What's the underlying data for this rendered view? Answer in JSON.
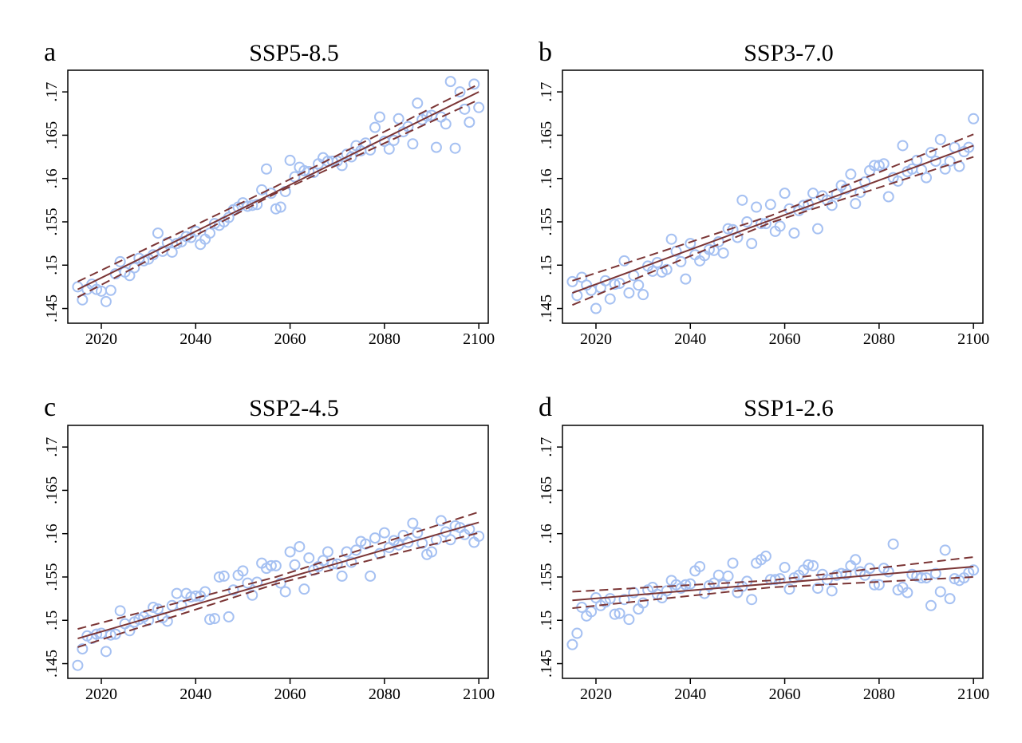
{
  "chart_data": [
    {
      "type": "scatter",
      "panel_label": "a",
      "title": "SSP5-8.5",
      "color": "#a6c1f2",
      "fit_color": "#7b3535",
      "xlim": [
        2012.9,
        2102
      ],
      "ylim": [
        0.1433,
        0.1725
      ],
      "xticks": [
        2020,
        2040,
        2060,
        2080,
        2100
      ],
      "yticks": [
        {
          "value": 0.145,
          "label": ".145"
        },
        {
          "value": 0.15,
          "label": ".15"
        },
        {
          "value": 0.155,
          "label": ".155"
        },
        {
          "value": 0.16,
          "label": ".16"
        },
        {
          "value": 0.165,
          "label": ".165"
        },
        {
          "value": 0.17,
          "label": ".17"
        }
      ],
      "x": [
        2015,
        2016,
        2017,
        2018,
        2019,
        2020,
        2021,
        2022,
        2023,
        2024,
        2025,
        2026,
        2027,
        2028,
        2029,
        2030,
        2031,
        2032,
        2033,
        2034,
        2035,
        2036,
        2037,
        2038,
        2039,
        2040,
        2041,
        2042,
        2043,
        2044,
        2045,
        2046,
        2047,
        2048,
        2049,
        2050,
        2051,
        2052,
        2053,
        2054,
        2055,
        2056,
        2057,
        2058,
        2059,
        2060,
        2061,
        2062,
        2063,
        2064,
        2065,
        2066,
        2067,
        2068,
        2069,
        2070,
        2071,
        2072,
        2073,
        2074,
        2075,
        2076,
        2077,
        2078,
        2079,
        2080,
        2081,
        2082,
        2083,
        2084,
        2085,
        2086,
        2087,
        2088,
        2089,
        2090,
        2091,
        2092,
        2093,
        2094,
        2095,
        2096,
        2097,
        2098,
        2099,
        2100
      ],
      "values": [
        0.1475,
        0.146,
        0.1472,
        0.1478,
        0.1472,
        0.147,
        0.1458,
        0.1471,
        0.149,
        0.1504,
        0.1492,
        0.1488,
        0.1497,
        0.1508,
        0.1505,
        0.1507,
        0.1512,
        0.1537,
        0.1516,
        0.1526,
        0.1515,
        0.1525,
        0.1527,
        0.1533,
        0.1532,
        0.1539,
        0.1524,
        0.153,
        0.1537,
        0.1548,
        0.1546,
        0.155,
        0.1555,
        0.1564,
        0.1567,
        0.1572,
        0.1568,
        0.1569,
        0.157,
        0.1587,
        0.1611,
        0.1583,
        0.1565,
        0.1567,
        0.1585,
        0.1621,
        0.1602,
        0.1613,
        0.1609,
        0.1608,
        0.1607,
        0.1617,
        0.1624,
        0.162,
        0.162,
        0.162,
        0.1615,
        0.1628,
        0.1625,
        0.1638,
        0.1632,
        0.1641,
        0.1633,
        0.1659,
        0.1671,
        0.1643,
        0.1634,
        0.1644,
        0.1669,
        0.1654,
        0.166,
        0.164,
        0.1687,
        0.1668,
        0.1672,
        0.1673,
        0.1636,
        0.1671,
        0.1663,
        0.1712,
        0.1635,
        0.17,
        0.168,
        0.1665,
        0.1709,
        0.1682
      ],
      "fit": {
        "x": [
          2015,
          2100
        ],
        "values": [
          0.1472,
          0.17
        ]
      },
      "ci_lower": {
        "x": [
          2015,
          2057,
          2100
        ],
        "values": [
          0.1463,
          0.1583,
          0.1691
        ]
      },
      "ci_upper": {
        "x": [
          2015,
          2057,
          2100
        ],
        "values": [
          0.1481,
          0.1591,
          0.1709
        ]
      }
    },
    {
      "type": "scatter",
      "panel_label": "b",
      "title": "SSP3-7.0",
      "color": "#a6c1f2",
      "fit_color": "#7b3535",
      "xlim": [
        2012.9,
        2102
      ],
      "ylim": [
        0.1433,
        0.1725
      ],
      "xticks": [
        2020,
        2040,
        2060,
        2080,
        2100
      ],
      "yticks": [
        {
          "value": 0.145,
          "label": ".145"
        },
        {
          "value": 0.15,
          "label": ".15"
        },
        {
          "value": 0.155,
          "label": ".155"
        },
        {
          "value": 0.16,
          "label": ".16"
        },
        {
          "value": 0.165,
          "label": ".165"
        },
        {
          "value": 0.17,
          "label": ".17"
        }
      ],
      "x": [
        2015,
        2016,
        2017,
        2018,
        2019,
        2020,
        2021,
        2022,
        2023,
        2024,
        2025,
        2026,
        2027,
        2028,
        2029,
        2030,
        2031,
        2032,
        2033,
        2034,
        2035,
        2036,
        2037,
        2038,
        2039,
        2040,
        2041,
        2042,
        2043,
        2044,
        2045,
        2046,
        2047,
        2048,
        2049,
        2050,
        2051,
        2052,
        2053,
        2054,
        2055,
        2056,
        2057,
        2058,
        2059,
        2060,
        2061,
        2062,
        2063,
        2064,
        2065,
        2066,
        2067,
        2068,
        2069,
        2070,
        2071,
        2072,
        2073,
        2074,
        2075,
        2076,
        2077,
        2078,
        2079,
        2080,
        2081,
        2082,
        2083,
        2084,
        2085,
        2086,
        2087,
        2088,
        2089,
        2090,
        2091,
        2092,
        2093,
        2094,
        2095,
        2096,
        2097,
        2098,
        2099,
        2100
      ],
      "values": [
        0.1481,
        0.1465,
        0.1486,
        0.1477,
        0.1471,
        0.145,
        0.1474,
        0.1482,
        0.1461,
        0.1478,
        0.1479,
        0.1505,
        0.1468,
        0.1488,
        0.1477,
        0.1466,
        0.1499,
        0.1493,
        0.1503,
        0.1492,
        0.1495,
        0.153,
        0.1516,
        0.1504,
        0.1484,
        0.1525,
        0.1512,
        0.1505,
        0.1511,
        0.1518,
        0.1517,
        0.1527,
        0.1514,
        0.1542,
        0.1541,
        0.1532,
        0.1575,
        0.155,
        0.1525,
        0.1567,
        0.1548,
        0.1548,
        0.157,
        0.1539,
        0.1545,
        0.1583,
        0.1565,
        0.1537,
        0.1563,
        0.1569,
        0.157,
        0.1583,
        0.1542,
        0.158,
        0.1575,
        0.1569,
        0.1582,
        0.1592,
        0.1588,
        0.1605,
        0.1571,
        0.1584,
        0.1596,
        0.1609,
        0.1615,
        0.1615,
        0.1617,
        0.1579,
        0.1601,
        0.1597,
        0.1638,
        0.1608,
        0.1611,
        0.1621,
        0.161,
        0.1601,
        0.163,
        0.162,
        0.1645,
        0.1611,
        0.162,
        0.1636,
        0.1614,
        0.1631,
        0.1636,
        0.1669
      ],
      "fit": {
        "x": [
          2015,
          2100
        ],
        "values": [
          0.1468,
          0.1638
        ]
      },
      "ci_lower": {
        "x": [
          2015,
          2057,
          2100
        ],
        "values": [
          0.1454,
          0.1549,
          0.1625
        ]
      },
      "ci_upper": {
        "x": [
          2015,
          2057,
          2100
        ],
        "values": [
          0.1482,
          0.1557,
          0.1651
        ]
      }
    },
    {
      "type": "scatter",
      "panel_label": "c",
      "title": "SSP2-4.5",
      "color": "#a6c1f2",
      "fit_color": "#7b3535",
      "xlim": [
        2012.9,
        2102
      ],
      "ylim": [
        0.1433,
        0.1725
      ],
      "xticks": [
        2020,
        2040,
        2060,
        2080,
        2100
      ],
      "yticks": [
        {
          "value": 0.145,
          "label": ".145"
        },
        {
          "value": 0.15,
          "label": ".15"
        },
        {
          "value": 0.155,
          "label": ".155"
        },
        {
          "value": 0.16,
          "label": ".16"
        },
        {
          "value": 0.165,
          "label": ".165"
        },
        {
          "value": 0.17,
          "label": ".17"
        }
      ],
      "x": [
        2015,
        2016,
        2017,
        2018,
        2019,
        2020,
        2021,
        2022,
        2023,
        2024,
        2025,
        2026,
        2027,
        2028,
        2029,
        2030,
        2031,
        2032,
        2033,
        2034,
        2035,
        2036,
        2037,
        2038,
        2039,
        2040,
        2041,
        2042,
        2043,
        2044,
        2045,
        2046,
        2047,
        2048,
        2049,
        2050,
        2051,
        2052,
        2053,
        2054,
        2055,
        2056,
        2057,
        2058,
        2059,
        2060,
        2061,
        2062,
        2063,
        2064,
        2065,
        2066,
        2067,
        2068,
        2069,
        2070,
        2071,
        2072,
        2073,
        2074,
        2075,
        2076,
        2077,
        2078,
        2079,
        2080,
        2081,
        2082,
        2083,
        2084,
        2085,
        2086,
        2087,
        2088,
        2089,
        2090,
        2091,
        2092,
        2093,
        2094,
        2095,
        2096,
        2097,
        2098,
        2099,
        2100
      ],
      "values": [
        0.1448,
        0.1467,
        0.1482,
        0.1479,
        0.1484,
        0.1485,
        0.1464,
        0.1483,
        0.1484,
        0.1511,
        0.1496,
        0.1488,
        0.1498,
        0.1501,
        0.1504,
        0.15,
        0.1515,
        0.1513,
        0.1503,
        0.1499,
        0.1517,
        0.1531,
        0.1517,
        0.1531,
        0.1527,
        0.1528,
        0.1528,
        0.1533,
        0.1501,
        0.1502,
        0.155,
        0.1551,
        0.1504,
        0.1535,
        0.1552,
        0.1557,
        0.1543,
        0.1529,
        0.1544,
        0.1566,
        0.156,
        0.1563,
        0.1563,
        0.1543,
        0.1533,
        0.1579,
        0.1564,
        0.1585,
        0.1536,
        0.1572,
        0.1558,
        0.1562,
        0.1569,
        0.1579,
        0.1565,
        0.1565,
        0.1551,
        0.1579,
        0.1567,
        0.1581,
        0.1591,
        0.1588,
        0.1551,
        0.1595,
        0.1577,
        0.1601,
        0.1584,
        0.1592,
        0.1587,
        0.1598,
        0.159,
        0.1612,
        0.1601,
        0.1589,
        0.1576,
        0.1579,
        0.1593,
        0.1615,
        0.1602,
        0.1593,
        0.1609,
        0.1607,
        0.1599,
        0.1605,
        0.159,
        0.1597
      ],
      "fit": {
        "x": [
          2015,
          2100
        ],
        "values": [
          0.1479,
          0.1613
        ]
      },
      "ci_lower": {
        "x": [
          2015,
          2057,
          2100
        ],
        "values": [
          0.1469,
          0.1542,
          0.1601
        ]
      },
      "ci_upper": {
        "x": [
          2015,
          2057,
          2100
        ],
        "values": [
          0.149,
          0.155,
          0.1625
        ]
      }
    },
    {
      "type": "scatter",
      "panel_label": "d",
      "title": "SSP1-2.6",
      "color": "#a6c1f2",
      "fit_color": "#7b3535",
      "xlim": [
        2012.9,
        2102
      ],
      "ylim": [
        0.1433,
        0.1725
      ],
      "xticks": [
        2020,
        2040,
        2060,
        2080,
        2100
      ],
      "yticks": [
        {
          "value": 0.145,
          "label": ".145"
        },
        {
          "value": 0.15,
          "label": ".15"
        },
        {
          "value": 0.155,
          "label": ".155"
        },
        {
          "value": 0.16,
          "label": ".16"
        },
        {
          "value": 0.165,
          "label": ".165"
        },
        {
          "value": 0.17,
          "label": ".17"
        }
      ],
      "x": [
        2015,
        2016,
        2017,
        2018,
        2019,
        2020,
        2021,
        2022,
        2023,
        2024,
        2025,
        2026,
        2027,
        2028,
        2029,
        2030,
        2031,
        2032,
        2033,
        2034,
        2035,
        2036,
        2037,
        2038,
        2039,
        2040,
        2041,
        2042,
        2043,
        2044,
        2045,
        2046,
        2047,
        2048,
        2049,
        2050,
        2051,
        2052,
        2053,
        2054,
        2055,
        2056,
        2057,
        2058,
        2059,
        2060,
        2061,
        2062,
        2063,
        2064,
        2065,
        2066,
        2067,
        2068,
        2069,
        2070,
        2071,
        2072,
        2073,
        2074,
        2075,
        2076,
        2077,
        2078,
        2079,
        2080,
        2081,
        2082,
        2083,
        2084,
        2085,
        2086,
        2087,
        2088,
        2089,
        2090,
        2091,
        2092,
        2093,
        2094,
        2095,
        2096,
        2097,
        2098,
        2099,
        2100
      ],
      "values": [
        0.1472,
        0.1485,
        0.1515,
        0.1505,
        0.151,
        0.1526,
        0.1517,
        0.1521,
        0.1525,
        0.1507,
        0.1508,
        0.1524,
        0.1501,
        0.1532,
        0.1513,
        0.152,
        0.1535,
        0.1538,
        0.153,
        0.1526,
        0.1534,
        0.1546,
        0.1541,
        0.1537,
        0.1541,
        0.1542,
        0.1557,
        0.1562,
        0.1531,
        0.154,
        0.1543,
        0.1552,
        0.1541,
        0.1551,
        0.1566,
        0.1532,
        0.1539,
        0.1545,
        0.1524,
        0.1566,
        0.157,
        0.1574,
        0.1547,
        0.1547,
        0.1548,
        0.1561,
        0.1536,
        0.1549,
        0.1552,
        0.1558,
        0.1564,
        0.1563,
        0.1537,
        0.1553,
        0.1547,
        0.1534,
        0.1552,
        0.1554,
        0.1553,
        0.1563,
        0.157,
        0.1556,
        0.1552,
        0.156,
        0.1541,
        0.1541,
        0.156,
        0.1556,
        0.1588,
        0.1535,
        0.1538,
        0.1532,
        0.1553,
        0.1551,
        0.1549,
        0.1549,
        0.1517,
        0.1554,
        0.1533,
        0.1581,
        0.1525,
        0.1548,
        0.1546,
        0.1549,
        0.1555,
        0.1558
      ],
      "fit": {
        "x": [
          2015,
          2100
        ],
        "values": [
          0.1523,
          0.1562
        ]
      },
      "ci_lower": {
        "x": [
          2015,
          2057,
          2100
        ],
        "values": [
          0.1514,
          0.1538,
          0.155
        ]
      },
      "ci_upper": {
        "x": [
          2015,
          2057,
          2100
        ],
        "values": [
          0.1533,
          0.1546,
          0.1573
        ]
      }
    }
  ]
}
